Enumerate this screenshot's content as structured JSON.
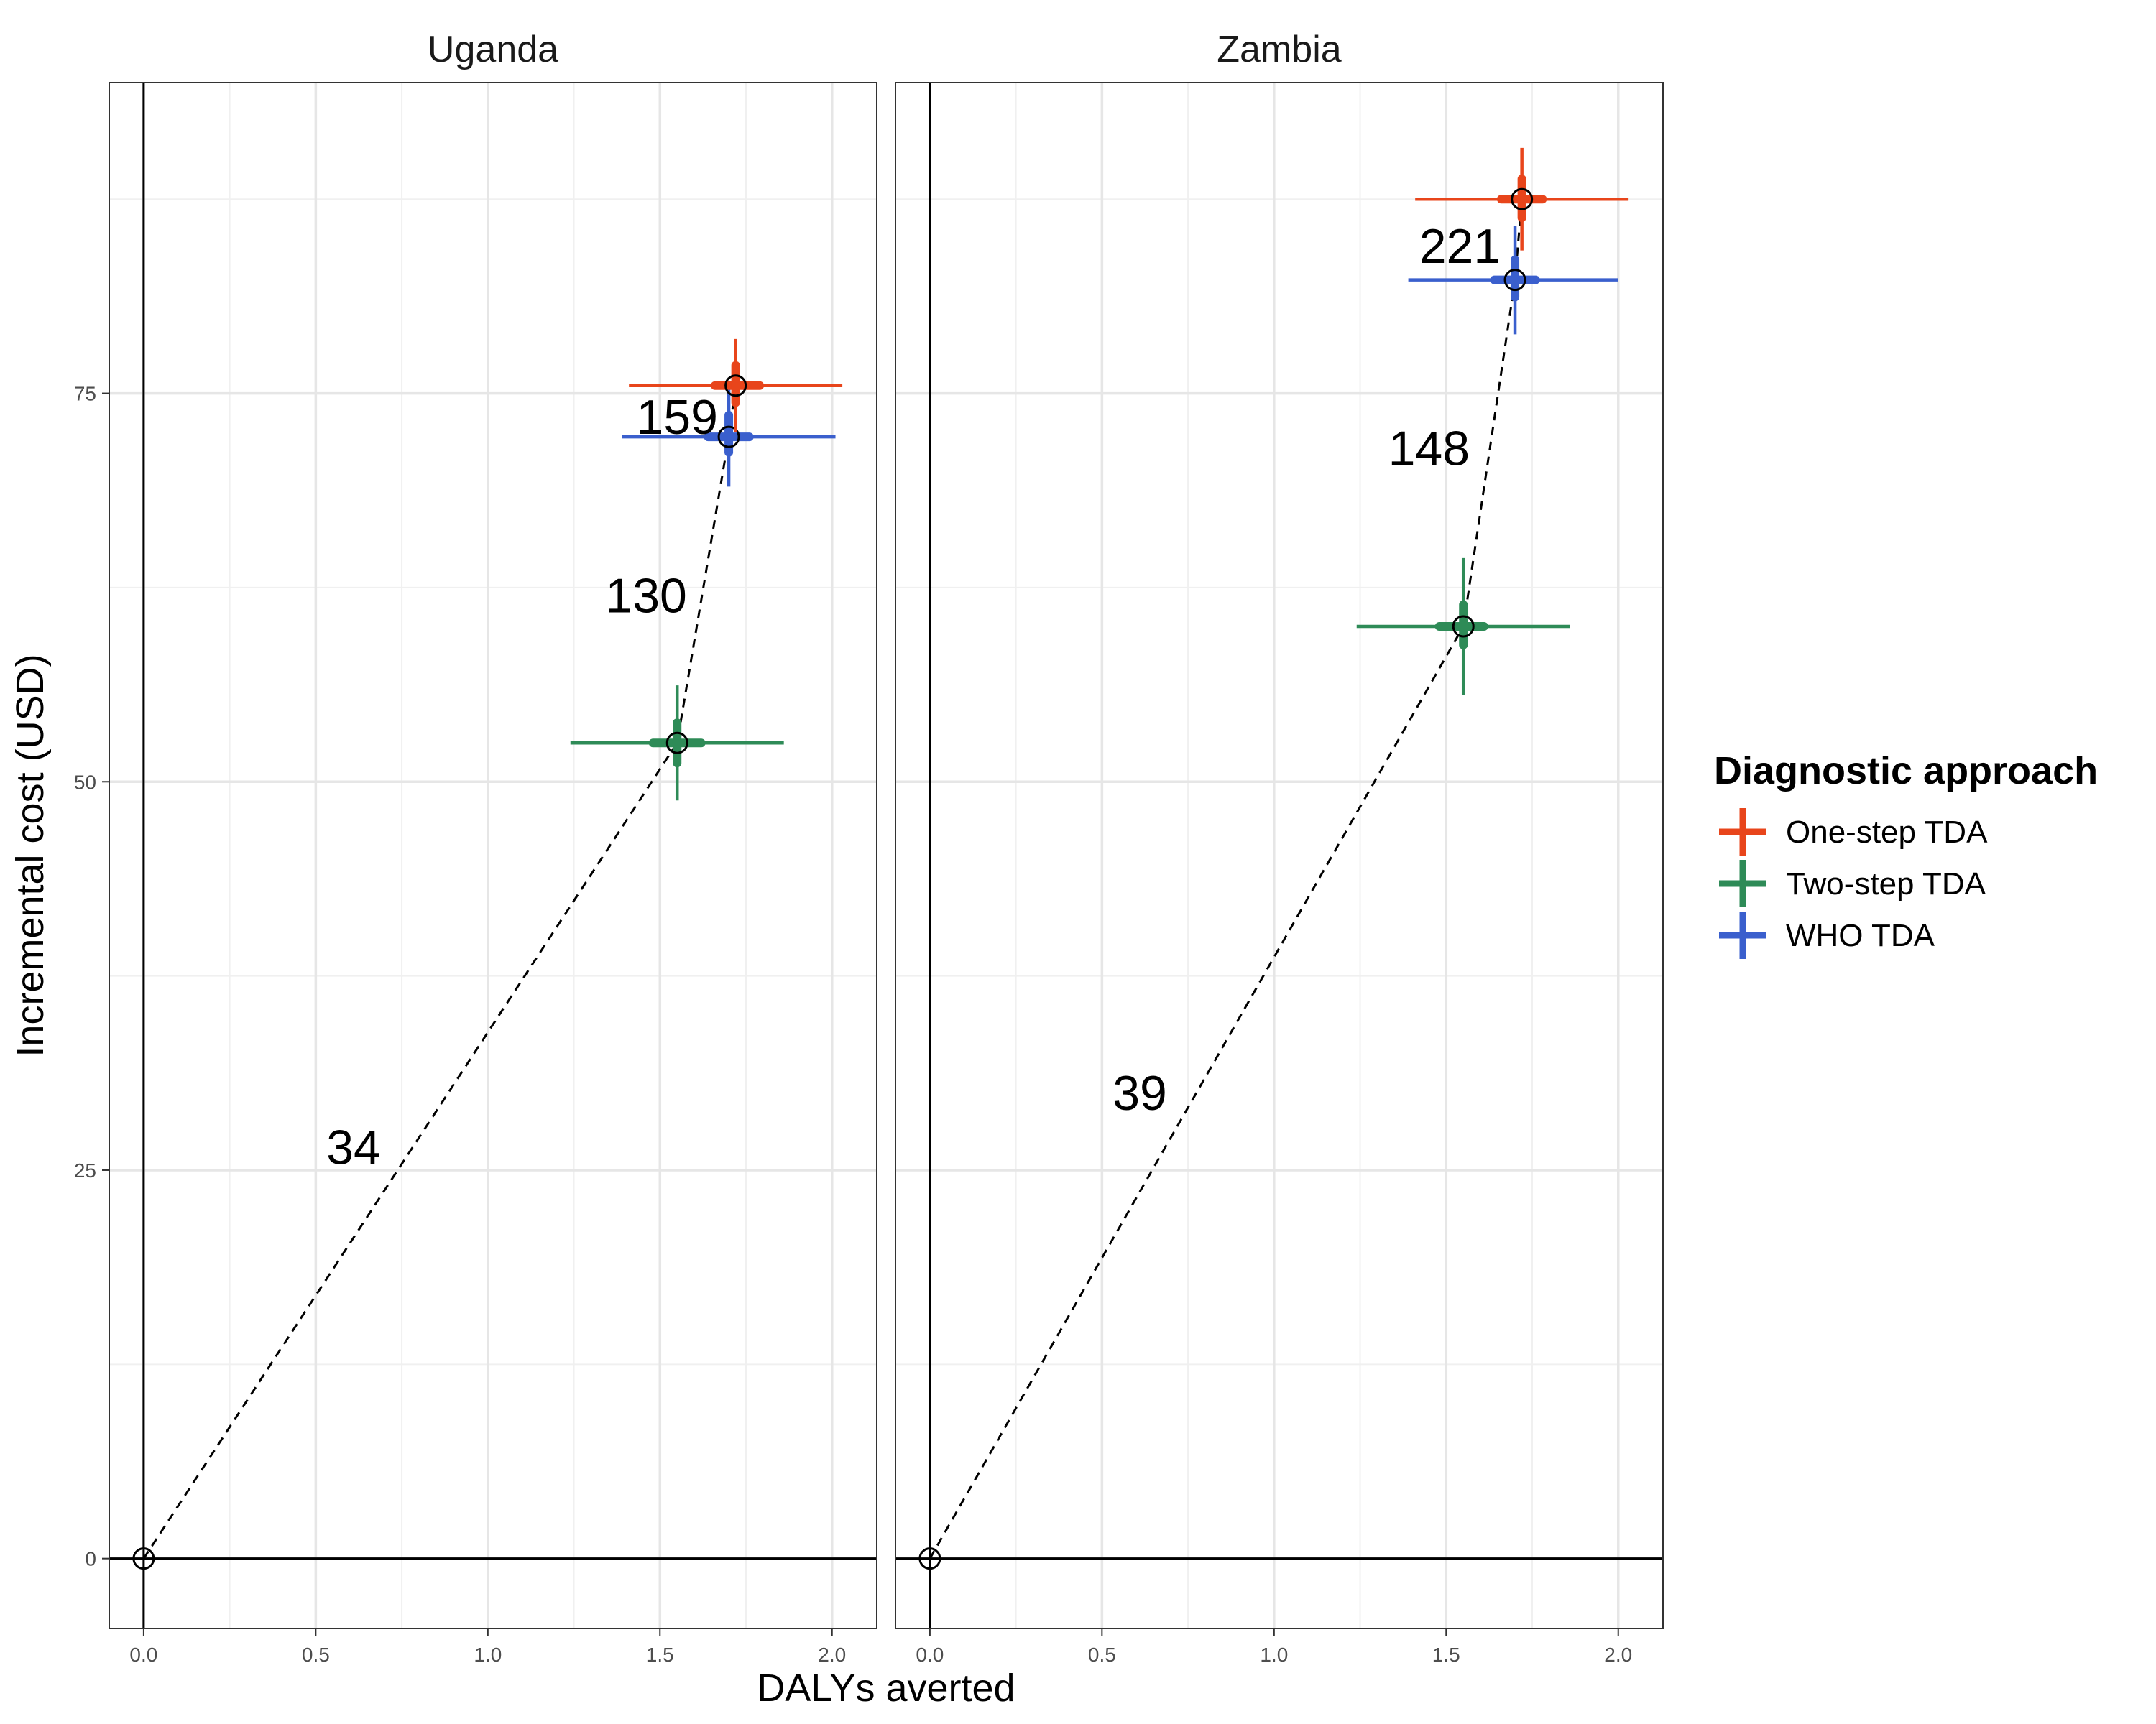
{
  "chart_data": {
    "type": "scatter",
    "xlabel": "DALYs averted",
    "ylabel": "Incremental cost (USD)",
    "xlim": [
      -0.1,
      2.13
    ],
    "ylim": [
      -4.5,
      95
    ],
    "x_ticks": [
      0.0,
      0.5,
      1.0,
      1.5,
      2.0
    ],
    "x_tick_labels": [
      "0.0",
      "0.5",
      "1.0",
      "1.5",
      "2.0"
    ],
    "y_ticks": [
      0,
      25,
      50,
      75
    ],
    "y_tick_labels": [
      "0",
      "25",
      "50",
      "75"
    ],
    "legend": {
      "title": "Diagnostic approach",
      "position": "right",
      "entries": [
        {
          "name": "One-step TDA",
          "color": "#E8451B"
        },
        {
          "name": "Two-step TDA",
          "color": "#2E8B57"
        },
        {
          "name": "WHO TDA",
          "color": "#3A5FCD"
        }
      ]
    },
    "facets": [
      {
        "title": "Uganda",
        "origin": {
          "x": 0,
          "y": 0
        },
        "points": [
          {
            "series": "Two-step TDA",
            "x": 1.55,
            "y": 52.5,
            "x_low": 1.24,
            "x_high": 1.86,
            "y_low": 48.8,
            "y_high": 56.2,
            "x_iqr": [
              1.48,
              1.62
            ],
            "y_iqr": [
              51.2,
              53.8
            ]
          },
          {
            "series": "WHO TDA",
            "x": 1.7,
            "y": 72.2,
            "x_low": 1.39,
            "x_high": 2.01,
            "y_low": 69.0,
            "y_high": 75.4,
            "x_iqr": [
              1.64,
              1.76
            ],
            "y_iqr": [
              71.2,
              73.6
            ]
          },
          {
            "series": "One-step TDA",
            "x": 1.72,
            "y": 75.5,
            "x_low": 1.41,
            "x_high": 2.03,
            "y_low": 72.5,
            "y_high": 78.5,
            "x_iqr": [
              1.66,
              1.79
            ],
            "y_iqr": [
              74.4,
              76.8
            ]
          }
        ],
        "frontier": [
          [
            0,
            0
          ],
          [
            1.55,
            52.5
          ],
          [
            1.7,
            72.2
          ],
          [
            1.72,
            75.5
          ]
        ],
        "icer_labels": [
          {
            "text": "34",
            "x": 0.61,
            "y": 26.5
          },
          {
            "text": "130",
            "x": 1.46,
            "y": 62.0
          },
          {
            "text": "159",
            "x": 1.55,
            "y": 73.5
          }
        ]
      },
      {
        "title": "Zambia",
        "origin": {
          "x": 0,
          "y": 0
        },
        "points": [
          {
            "series": "Two-step TDA",
            "x": 1.55,
            "y": 60.0,
            "x_low": 1.24,
            "x_high": 1.86,
            "y_low": 55.6,
            "y_high": 64.4,
            "x_iqr": [
              1.48,
              1.61
            ],
            "y_iqr": [
              58.8,
              61.4
            ]
          },
          {
            "series": "WHO TDA",
            "x": 1.7,
            "y": 82.3,
            "x_low": 1.39,
            "x_high": 2.0,
            "y_low": 78.8,
            "y_high": 85.8,
            "x_iqr": [
              1.64,
              1.76
            ],
            "y_iqr": [
              81.2,
              83.6
            ]
          },
          {
            "series": "One-step TDA",
            "x": 1.72,
            "y": 87.5,
            "x_low": 1.41,
            "x_high": 2.03,
            "y_low": 84.2,
            "y_high": 90.8,
            "x_iqr": [
              1.66,
              1.78
            ],
            "y_iqr": [
              86.3,
              88.8
            ]
          }
        ],
        "frontier": [
          [
            0,
            0
          ],
          [
            1.55,
            60.0
          ],
          [
            1.7,
            82.3
          ],
          [
            1.72,
            87.5
          ]
        ],
        "icer_labels": [
          {
            "text": "39",
            "x": 0.61,
            "y": 30.0
          },
          {
            "text": "148",
            "x": 1.45,
            "y": 71.5
          },
          {
            "text": "221",
            "x": 1.54,
            "y": 84.5
          }
        ]
      }
    ]
  }
}
